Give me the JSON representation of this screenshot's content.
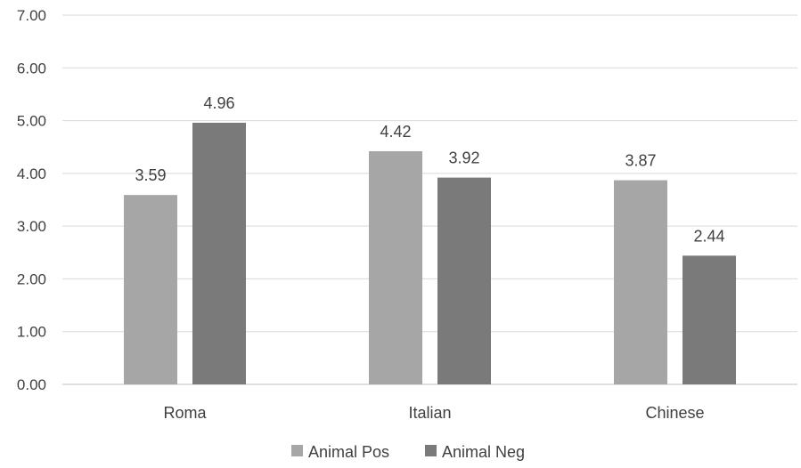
{
  "chart_data": {
    "type": "bar",
    "categories": [
      "Roma",
      "Italian",
      "Chinese"
    ],
    "series": [
      {
        "name": "Animal Pos",
        "values": [
          3.59,
          4.42,
          3.87
        ],
        "color": "#a6a6a6"
      },
      {
        "name": "Animal Neg",
        "values": [
          4.96,
          3.92,
          2.44
        ],
        "color": "#7a7a7a"
      }
    ],
    "data_labels": [
      [
        "3.59",
        "4.42",
        "3.87"
      ],
      [
        "4.96",
        "3.92",
        "2.44"
      ]
    ],
    "y_ticks": [
      "0.00",
      "1.00",
      "2.00",
      "3.00",
      "4.00",
      "5.00",
      "6.00",
      "7.00"
    ],
    "ylim": [
      0,
      7
    ],
    "grid": true,
    "legend_position": "bottom"
  }
}
